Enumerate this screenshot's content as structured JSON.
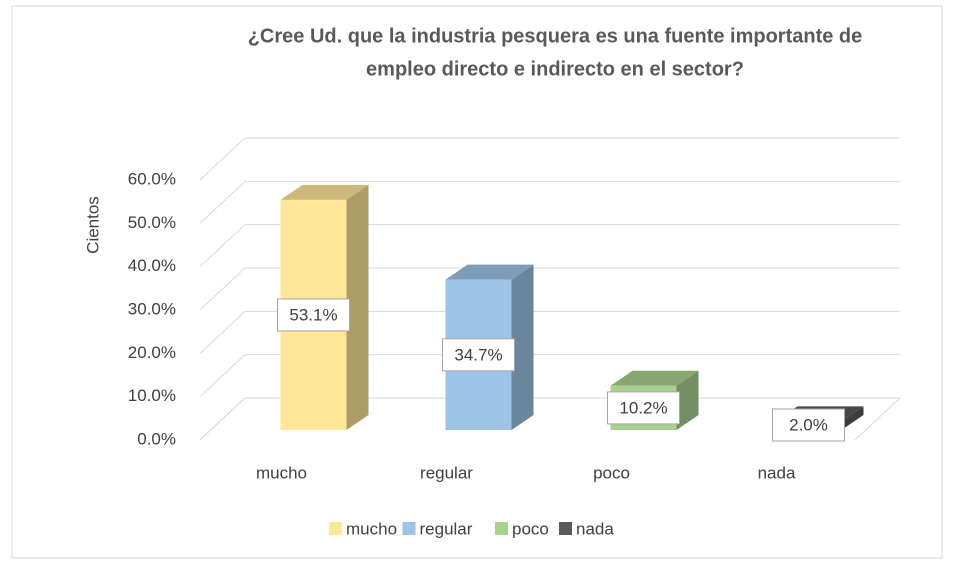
{
  "chart_data": {
    "type": "bar3d",
    "title": [
      "¿Cree Ud. que la industria pesquera es una fuente importante de",
      "empleo directo e indirecto en el sector?"
    ],
    "y_label": "Cientos",
    "categories": [
      "mucho",
      "regular",
      "poco",
      "nada"
    ],
    "values": [
      53.1,
      34.7,
      10.2,
      2.0
    ],
    "value_labels": [
      "53.1%",
      "34.7%",
      "10.2%",
      "2.0%"
    ],
    "colors": [
      "#ffe699",
      "#9dc3e6",
      "#a9d18e",
      "#595959"
    ],
    "ylim": [
      0,
      60
    ],
    "yticks": [
      {
        "value": 0,
        "label": "0.0%"
      },
      {
        "value": 10,
        "label": "10.0%"
      },
      {
        "value": 20,
        "label": "20.0%"
      },
      {
        "value": 30,
        "label": "30.0%"
      },
      {
        "value": 40,
        "label": "40.0%"
      },
      {
        "value": 50,
        "label": "50.0%"
      },
      {
        "value": 60,
        "label": "60.0%"
      }
    ],
    "grid": true,
    "legend": "bottom"
  }
}
